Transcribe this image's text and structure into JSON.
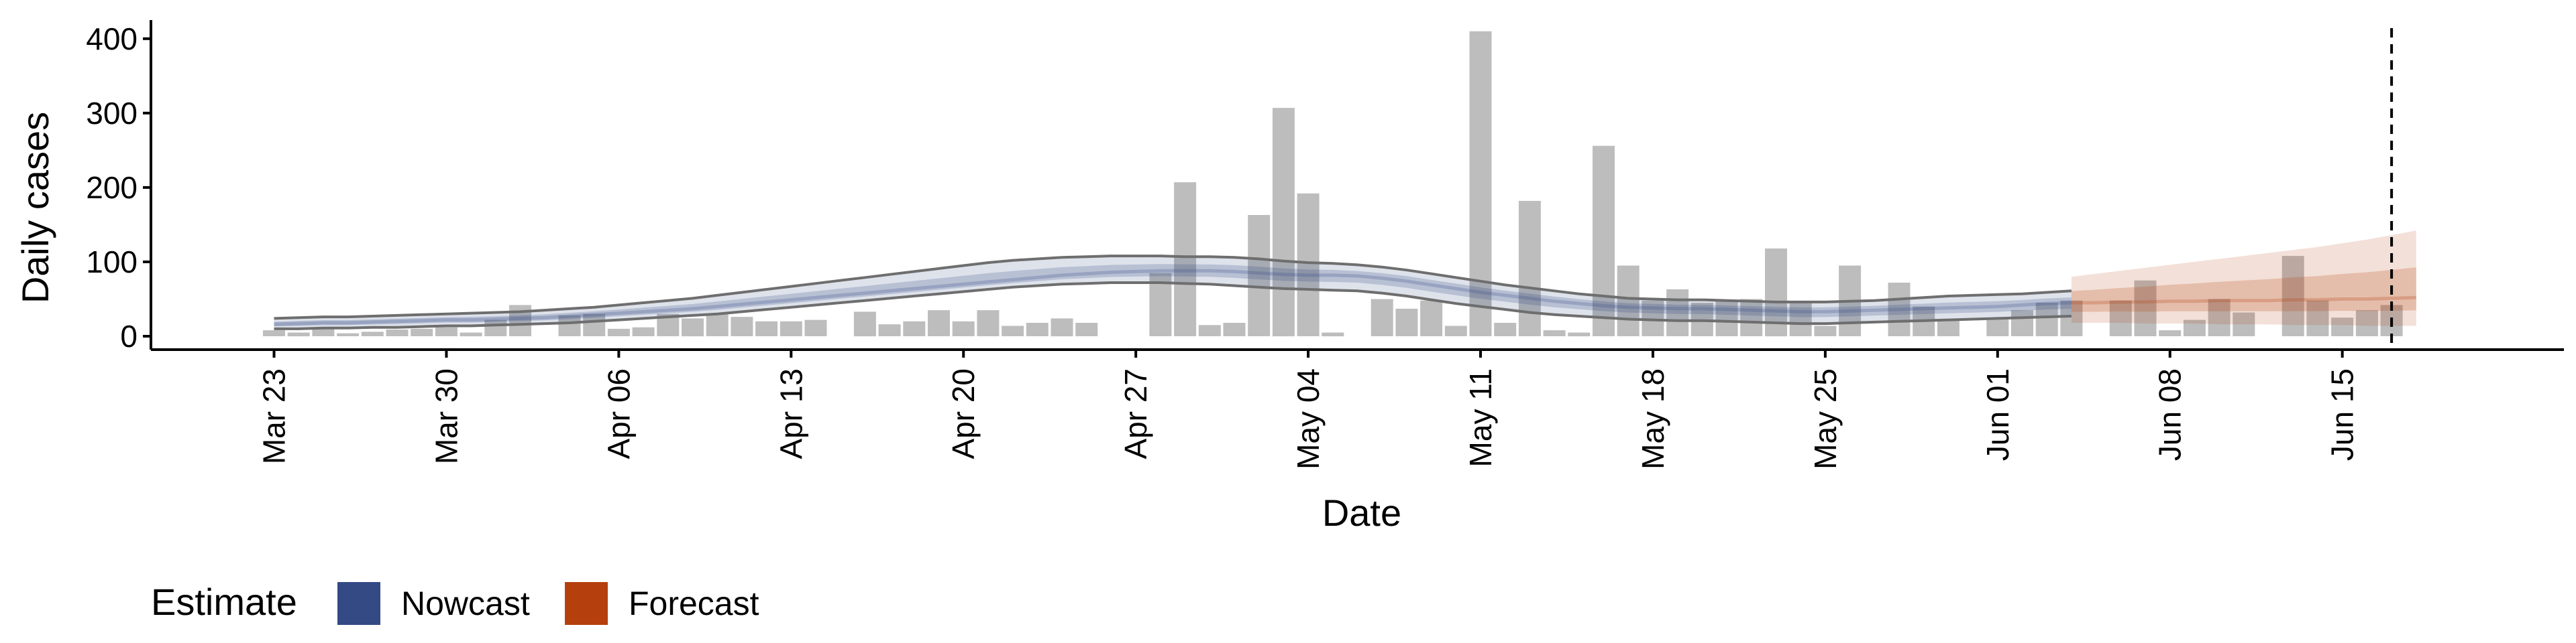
{
  "chart_data": {
    "type": "bar",
    "xlabel": "Date",
    "ylabel": "Daily cases",
    "x_ticks": [
      "Mar 23",
      "Mar 30",
      "Apr 06",
      "Apr 13",
      "Apr 20",
      "Apr 27",
      "May 04",
      "May 11",
      "May 18",
      "May 25",
      "Jun 01",
      "Jun 08",
      "Jun 15"
    ],
    "y_ticks": [
      0,
      100,
      200,
      300,
      400
    ],
    "ylim": [
      -18,
      425
    ],
    "start_date": "2020-03-23",
    "xlim": [
      "2020-03-18",
      "2020-06-24"
    ],
    "forecast_start": "2020-06-04",
    "vline_date": "2020-06-17",
    "vline_style": "dashed",
    "daily_cases": [
      8,
      5,
      10,
      4,
      6,
      9,
      10,
      12,
      5,
      22,
      42,
      0,
      28,
      30,
      10,
      12,
      30,
      24,
      30,
      26,
      20,
      20,
      22,
      0,
      33,
      16,
      20,
      35,
      20,
      35,
      14,
      18,
      24,
      18,
      0,
      0,
      85,
      207,
      15,
      18,
      163,
      307,
      192,
      5,
      0,
      50,
      37,
      48,
      14,
      410,
      18,
      182,
      8,
      5,
      256,
      95,
      48,
      63,
      45,
      48,
      50,
      118,
      45,
      14,
      95,
      0,
      72,
      40,
      22,
      0,
      25,
      35,
      45,
      48,
      0,
      48,
      75,
      8,
      22,
      50,
      32,
      0,
      108,
      48,
      25,
      35,
      42
    ],
    "series": [
      {
        "name": "Nowcast",
        "color": "#334a85",
        "type": "band",
        "median": [
          16,
          17,
          18,
          18,
          19,
          20,
          21,
          22,
          22,
          23,
          24,
          25,
          27,
          29,
          31,
          33,
          35,
          37,
          40,
          43,
          46,
          49,
          52,
          55,
          58,
          61,
          64,
          67,
          70,
          73,
          76,
          79,
          82,
          84,
          86,
          87,
          88,
          88,
          88,
          87,
          85,
          83,
          82,
          82,
          81,
          78,
          74,
          69,
          64,
          59,
          55,
          51,
          47,
          44,
          41,
          39,
          38,
          37,
          37,
          36,
          35,
          34,
          33,
          33,
          34,
          35,
          36,
          37,
          38,
          39,
          40,
          42,
          44,
          45
        ],
        "lower": [
          10,
          10,
          11,
          11,
          12,
          12,
          13,
          14,
          14,
          15,
          16,
          17,
          18,
          20,
          22,
          24,
          26,
          28,
          30,
          33,
          36,
          39,
          42,
          45,
          48,
          51,
          54,
          57,
          60,
          63,
          66,
          68,
          70,
          71,
          72,
          72,
          72,
          71,
          70,
          68,
          66,
          64,
          63,
          62,
          61,
          58,
          54,
          49,
          44,
          40,
          36,
          32,
          29,
          27,
          25,
          23,
          22,
          21,
          21,
          20,
          19,
          18,
          17,
          17,
          18,
          19,
          20,
          21,
          22,
          23,
          24,
          25,
          26,
          27
        ],
        "upper": [
          24,
          25,
          26,
          26,
          27,
          28,
          29,
          30,
          31,
          32,
          33,
          35,
          37,
          39,
          42,
          45,
          48,
          51,
          55,
          59,
          63,
          67,
          71,
          75,
          79,
          83,
          87,
          91,
          95,
          99,
          102,
          104,
          106,
          107,
          108,
          108,
          108,
          107,
          107,
          106,
          104,
          101,
          99,
          98,
          96,
          93,
          89,
          84,
          79,
          74,
          69,
          65,
          61,
          57,
          54,
          51,
          50,
          49,
          49,
          48,
          47,
          46,
          46,
          46,
          47,
          48,
          50,
          52,
          54,
          55,
          56,
          57,
          59,
          61
        ]
      },
      {
        "name": "Forecast",
        "color": "#b5400e",
        "type": "band",
        "median": [
          45,
          45,
          46,
          46,
          47,
          47,
          48,
          48,
          48,
          49,
          49,
          50,
          50,
          51,
          52
        ],
        "lower": [
          18,
          18,
          18,
          17,
          17,
          17,
          16,
          16,
          16,
          15,
          15,
          15,
          14,
          14,
          14
        ],
        "upper": [
          80,
          84,
          88,
          92,
          96,
          100,
          104,
          108,
          112,
          116,
          120,
          125,
          130,
          136,
          142
        ]
      }
    ],
    "legend": {
      "title": "Estimate",
      "position": "bottom-left",
      "items": [
        {
          "label": "Nowcast",
          "color": "#334a85"
        },
        {
          "label": "Forecast",
          "color": "#b5400e"
        }
      ]
    },
    "bar_color": "#bdbdbd",
    "grid": false
  }
}
